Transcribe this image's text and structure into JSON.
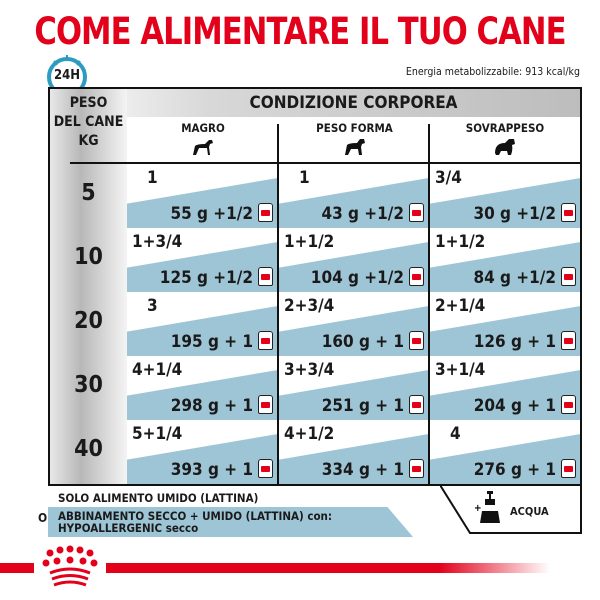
{
  "title": "COME ALIMENTARE IL TUO CANE",
  "clock_label": "24H",
  "energy": "Energia metabolizzabile: 913 kcal/kg",
  "header": {
    "weight_label_1": "PESO",
    "weight_label_2": "DEL CANE",
    "weight_label_3": "KG",
    "condition": "CONDIZIONE CORPOREA",
    "columns": [
      "MAGRO",
      "PESO FORMA",
      "SOVRAPPESO"
    ]
  },
  "rows": [
    {
      "weight": "5",
      "cells": [
        {
          "n": "1",
          "amt": "55 g +1/2"
        },
        {
          "n": "1",
          "amt": "43 g +1/2"
        },
        {
          "n": "3/4",
          "amt": "30 g +1/2"
        }
      ]
    },
    {
      "weight": "10",
      "cells": [
        {
          "n": "1+3/4",
          "amt": "125 g +1/2"
        },
        {
          "n": "1+1/2",
          "amt": "104 g +1/2"
        },
        {
          "n": "1+1/2",
          "amt": "84 g +1/2"
        }
      ]
    },
    {
      "weight": "20",
      "cells": [
        {
          "n": "3",
          "amt": "195 g + 1"
        },
        {
          "n": "2+3/4",
          "amt": "160 g + 1"
        },
        {
          "n": "2+1/4",
          "amt": "126 g + 1"
        }
      ]
    },
    {
      "weight": "30",
      "cells": [
        {
          "n": "4+1/4",
          "amt": "298 g + 1"
        },
        {
          "n": "3+3/4",
          "amt": "251 g + 1"
        },
        {
          "n": "3+1/4",
          "amt": "204 g + 1"
        }
      ]
    },
    {
      "weight": "40",
      "cells": [
        {
          "n": "5+1/4",
          "amt": "393 g + 1"
        },
        {
          "n": "4+1/2",
          "amt": "334 g + 1"
        },
        {
          "n": "4",
          "amt": "276 g + 1"
        }
      ]
    }
  ],
  "legend": {
    "wet_only": "SOLO ALIMENTO UMIDO (LATTINA)",
    "or": "O",
    "mixed": "ABBINAMENTO SECCO + UMIDO (LATTINA) con:",
    "mixed_dry": "HYPOALLERGENIC secco",
    "water": "ACQUA"
  },
  "colors": {
    "brand_red": "#e2001a",
    "band_blue": "#9ec5d6",
    "clock_blue": "#2e9bc0"
  }
}
